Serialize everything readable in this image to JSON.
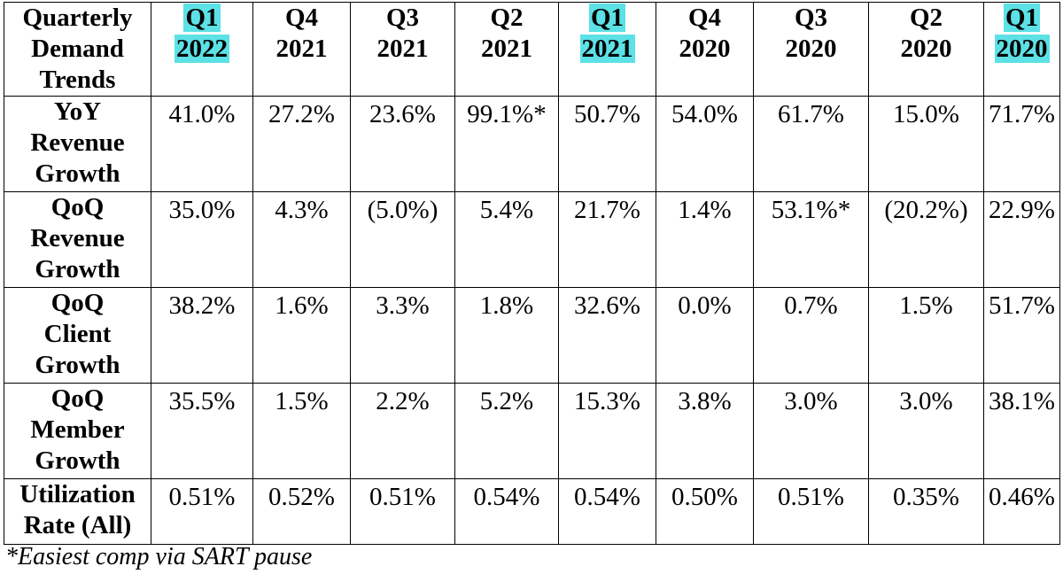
{
  "table": {
    "corner": [
      "Quarterly",
      "Demand",
      "Trends"
    ],
    "columns": [
      {
        "q": "Q1",
        "y": "2022",
        "highlighted": true
      },
      {
        "q": "Q4",
        "y": "2021",
        "highlighted": false
      },
      {
        "q": "Q3",
        "y": "2021",
        "highlighted": false
      },
      {
        "q": "Q2",
        "y": "2021",
        "highlighted": false
      },
      {
        "q": "Q1",
        "y": "2021",
        "highlighted": true
      },
      {
        "q": "Q4",
        "y": "2020",
        "highlighted": false
      },
      {
        "q": "Q3",
        "y": "2020",
        "highlighted": false
      },
      {
        "q": "Q2",
        "y": "2020",
        "highlighted": false
      },
      {
        "q": "Q1",
        "y": "2020",
        "highlighted": true
      }
    ],
    "highlight_color": "#5ce1e6",
    "rows": [
      {
        "label": [
          "YoY",
          "Revenue",
          "Growth"
        ],
        "values": [
          "41.0%",
          "27.2%",
          "23.6%",
          "99.1%*",
          "50.7%",
          "54.0%",
          "61.7%",
          "15.0%",
          "71.7%"
        ]
      },
      {
        "label": [
          "QoQ",
          "Revenue",
          "Growth"
        ],
        "values": [
          "35.0%",
          "4.3%",
          "(5.0%)",
          "5.4%",
          "21.7%",
          "1.4%",
          "53.1%*",
          "(20.2%)",
          "22.9%"
        ]
      },
      {
        "label": [
          "QoQ",
          "Client",
          "Growth"
        ],
        "values": [
          "38.2%",
          "1.6%",
          "3.3%",
          "1.8%",
          "32.6%",
          "0.0%",
          "0.7%",
          "1.5%",
          "51.7%"
        ]
      },
      {
        "label": [
          "QoQ",
          "Member",
          "Growth"
        ],
        "values": [
          "35.5%",
          "1.5%",
          "2.2%",
          "5.2%",
          "15.3%",
          "3.8%",
          "3.0%",
          "3.0%",
          "38.1%"
        ]
      },
      {
        "label": [
          "Utilization",
          "Rate (All)"
        ],
        "values": [
          "0.51%",
          "0.52%",
          "0.51%",
          "0.54%",
          "0.54%",
          "0.50%",
          "0.51%",
          "0.35%",
          "0.46%"
        ]
      }
    ]
  },
  "footnote": "*Easiest comp via SART pause"
}
